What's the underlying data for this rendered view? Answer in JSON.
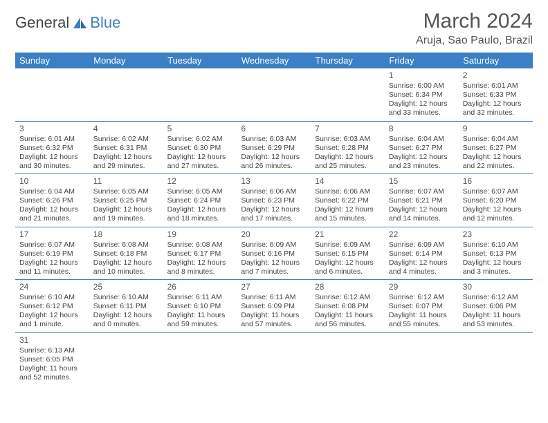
{
  "brand": {
    "part1": "General",
    "part2": "Blue"
  },
  "title": "March 2024",
  "location": "Aruja, Sao Paulo, Brazil",
  "colors": {
    "accent": "#3b7fc4",
    "text": "#444444",
    "background": "#ffffff"
  },
  "day_headers": [
    "Sunday",
    "Monday",
    "Tuesday",
    "Wednesday",
    "Thursday",
    "Friday",
    "Saturday"
  ],
  "weeks": [
    [
      null,
      null,
      null,
      null,
      null,
      {
        "n": "1",
        "sr": "Sunrise: 6:00 AM",
        "ss": "Sunset: 6:34 PM",
        "dl1": "Daylight: 12 hours",
        "dl2": "and 33 minutes."
      },
      {
        "n": "2",
        "sr": "Sunrise: 6:01 AM",
        "ss": "Sunset: 6:33 PM",
        "dl1": "Daylight: 12 hours",
        "dl2": "and 32 minutes."
      }
    ],
    [
      {
        "n": "3",
        "sr": "Sunrise: 6:01 AM",
        "ss": "Sunset: 6:32 PM",
        "dl1": "Daylight: 12 hours",
        "dl2": "and 30 minutes."
      },
      {
        "n": "4",
        "sr": "Sunrise: 6:02 AM",
        "ss": "Sunset: 6:31 PM",
        "dl1": "Daylight: 12 hours",
        "dl2": "and 29 minutes."
      },
      {
        "n": "5",
        "sr": "Sunrise: 6:02 AM",
        "ss": "Sunset: 6:30 PM",
        "dl1": "Daylight: 12 hours",
        "dl2": "and 27 minutes."
      },
      {
        "n": "6",
        "sr": "Sunrise: 6:03 AM",
        "ss": "Sunset: 6:29 PM",
        "dl1": "Daylight: 12 hours",
        "dl2": "and 26 minutes."
      },
      {
        "n": "7",
        "sr": "Sunrise: 6:03 AM",
        "ss": "Sunset: 6:28 PM",
        "dl1": "Daylight: 12 hours",
        "dl2": "and 25 minutes."
      },
      {
        "n": "8",
        "sr": "Sunrise: 6:04 AM",
        "ss": "Sunset: 6:27 PM",
        "dl1": "Daylight: 12 hours",
        "dl2": "and 23 minutes."
      },
      {
        "n": "9",
        "sr": "Sunrise: 6:04 AM",
        "ss": "Sunset: 6:27 PM",
        "dl1": "Daylight: 12 hours",
        "dl2": "and 22 minutes."
      }
    ],
    [
      {
        "n": "10",
        "sr": "Sunrise: 6:04 AM",
        "ss": "Sunset: 6:26 PM",
        "dl1": "Daylight: 12 hours",
        "dl2": "and 21 minutes."
      },
      {
        "n": "11",
        "sr": "Sunrise: 6:05 AM",
        "ss": "Sunset: 6:25 PM",
        "dl1": "Daylight: 12 hours",
        "dl2": "and 19 minutes."
      },
      {
        "n": "12",
        "sr": "Sunrise: 6:05 AM",
        "ss": "Sunset: 6:24 PM",
        "dl1": "Daylight: 12 hours",
        "dl2": "and 18 minutes."
      },
      {
        "n": "13",
        "sr": "Sunrise: 6:06 AM",
        "ss": "Sunset: 6:23 PM",
        "dl1": "Daylight: 12 hours",
        "dl2": "and 17 minutes."
      },
      {
        "n": "14",
        "sr": "Sunrise: 6:06 AM",
        "ss": "Sunset: 6:22 PM",
        "dl1": "Daylight: 12 hours",
        "dl2": "and 15 minutes."
      },
      {
        "n": "15",
        "sr": "Sunrise: 6:07 AM",
        "ss": "Sunset: 6:21 PM",
        "dl1": "Daylight: 12 hours",
        "dl2": "and 14 minutes."
      },
      {
        "n": "16",
        "sr": "Sunrise: 6:07 AM",
        "ss": "Sunset: 6:20 PM",
        "dl1": "Daylight: 12 hours",
        "dl2": "and 12 minutes."
      }
    ],
    [
      {
        "n": "17",
        "sr": "Sunrise: 6:07 AM",
        "ss": "Sunset: 6:19 PM",
        "dl1": "Daylight: 12 hours",
        "dl2": "and 11 minutes."
      },
      {
        "n": "18",
        "sr": "Sunrise: 6:08 AM",
        "ss": "Sunset: 6:18 PM",
        "dl1": "Daylight: 12 hours",
        "dl2": "and 10 minutes."
      },
      {
        "n": "19",
        "sr": "Sunrise: 6:08 AM",
        "ss": "Sunset: 6:17 PM",
        "dl1": "Daylight: 12 hours",
        "dl2": "and 8 minutes."
      },
      {
        "n": "20",
        "sr": "Sunrise: 6:09 AM",
        "ss": "Sunset: 6:16 PM",
        "dl1": "Daylight: 12 hours",
        "dl2": "and 7 minutes."
      },
      {
        "n": "21",
        "sr": "Sunrise: 6:09 AM",
        "ss": "Sunset: 6:15 PM",
        "dl1": "Daylight: 12 hours",
        "dl2": "and 6 minutes."
      },
      {
        "n": "22",
        "sr": "Sunrise: 6:09 AM",
        "ss": "Sunset: 6:14 PM",
        "dl1": "Daylight: 12 hours",
        "dl2": "and 4 minutes."
      },
      {
        "n": "23",
        "sr": "Sunrise: 6:10 AM",
        "ss": "Sunset: 6:13 PM",
        "dl1": "Daylight: 12 hours",
        "dl2": "and 3 minutes."
      }
    ],
    [
      {
        "n": "24",
        "sr": "Sunrise: 6:10 AM",
        "ss": "Sunset: 6:12 PM",
        "dl1": "Daylight: 12 hours",
        "dl2": "and 1 minute."
      },
      {
        "n": "25",
        "sr": "Sunrise: 6:10 AM",
        "ss": "Sunset: 6:11 PM",
        "dl1": "Daylight: 12 hours",
        "dl2": "and 0 minutes."
      },
      {
        "n": "26",
        "sr": "Sunrise: 6:11 AM",
        "ss": "Sunset: 6:10 PM",
        "dl1": "Daylight: 11 hours",
        "dl2": "and 59 minutes."
      },
      {
        "n": "27",
        "sr": "Sunrise: 6:11 AM",
        "ss": "Sunset: 6:09 PM",
        "dl1": "Daylight: 11 hours",
        "dl2": "and 57 minutes."
      },
      {
        "n": "28",
        "sr": "Sunrise: 6:12 AM",
        "ss": "Sunset: 6:08 PM",
        "dl1": "Daylight: 11 hours",
        "dl2": "and 56 minutes."
      },
      {
        "n": "29",
        "sr": "Sunrise: 6:12 AM",
        "ss": "Sunset: 6:07 PM",
        "dl1": "Daylight: 11 hours",
        "dl2": "and 55 minutes."
      },
      {
        "n": "30",
        "sr": "Sunrise: 6:12 AM",
        "ss": "Sunset: 6:06 PM",
        "dl1": "Daylight: 11 hours",
        "dl2": "and 53 minutes."
      }
    ],
    [
      {
        "n": "31",
        "sr": "Sunrise: 6:13 AM",
        "ss": "Sunset: 6:05 PM",
        "dl1": "Daylight: 11 hours",
        "dl2": "and 52 minutes."
      },
      null,
      null,
      null,
      null,
      null,
      null
    ]
  ]
}
